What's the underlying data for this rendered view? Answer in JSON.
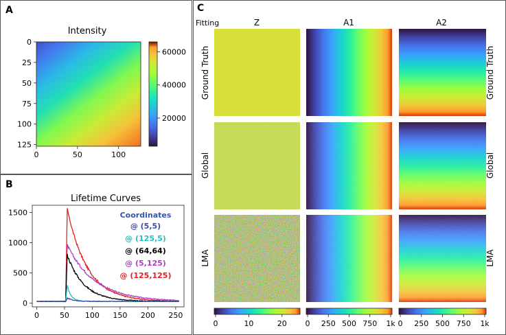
{
  "panels": {
    "a": {
      "letter": "A",
      "title": "Intensity",
      "x_ticks": [
        "0",
        "50",
        "100"
      ],
      "y_ticks": [
        "0",
        "25",
        "50",
        "75",
        "100",
        "125"
      ],
      "colorbar_ticks": [
        "20000",
        "40000",
        "60000"
      ]
    },
    "b": {
      "letter": "B",
      "title": "Lifetime Curves",
      "legend_title": "Coordinates",
      "legend_title_color": "#3355aa"
    },
    "c": {
      "letter": "C",
      "fitting_label": "Fitting",
      "columns": [
        "Z",
        "A1",
        "A2"
      ],
      "rows": [
        "Ground Truth",
        "Global",
        "LMA"
      ],
      "colorbars": [
        {
          "name": "Z",
          "ticks": [
            "0",
            "10",
            "20"
          ]
        },
        {
          "name": "A1",
          "ticks": [
            "0",
            "250",
            "500",
            "750",
            "1k"
          ]
        },
        {
          "name": "A2",
          "ticks": [
            "0",
            "250",
            "500",
            "750",
            "1k"
          ]
        }
      ]
    }
  },
  "chart_data": [
    {
      "type": "heatmap",
      "title": "Intensity",
      "xlabel": "",
      "ylabel": "",
      "xlim": [
        0,
        127
      ],
      "ylim": [
        127,
        0
      ],
      "colorbar_range": [
        3000,
        66000
      ],
      "description_values": {
        "top_left": 5000,
        "bottom_right": 65000
      }
    },
    {
      "type": "line",
      "title": "Lifetime Curves",
      "xlabel": "",
      "ylabel": "",
      "xlim": [
        -8,
        265
      ],
      "ylim": [
        -60,
        1620
      ],
      "x_ticks": [
        0,
        50,
        100,
        150,
        200,
        250
      ],
      "y_ticks": [
        0,
        500,
        1000,
        1500
      ],
      "series": [
        {
          "name": "@ (5,5)",
          "color": "#3a4ea8",
          "baseline": 30,
          "peak": 85,
          "peak_x": 55,
          "tau": 12
        },
        {
          "name": "@ (125,5)",
          "color": "#23c0c0",
          "baseline": 30,
          "peak": 290,
          "peak_x": 55,
          "tau": 7
        },
        {
          "name": "@ (64,64)",
          "color": "#000000",
          "baseline": 30,
          "peak": 800,
          "peak_x": 55,
          "tau": 30
        },
        {
          "name": "@ (5,125)",
          "color": "#b040c0",
          "baseline": 30,
          "peak": 960,
          "peak_x": 55,
          "tau": 50
        },
        {
          "name": "@ (125,125)",
          "color": "#e02020",
          "baseline": 30,
          "peak": 1560,
          "peak_x": 55,
          "tau": 36
        }
      ]
    }
  ]
}
